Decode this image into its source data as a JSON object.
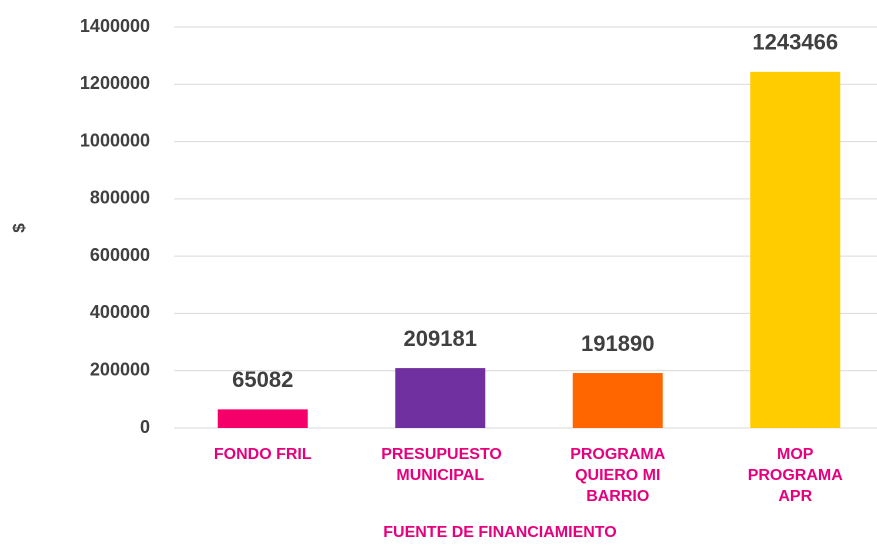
{
  "chart_data": {
    "type": "bar",
    "categories": [
      "FONDO FRIL",
      "PRESUPUESTO MUNICIPAL",
      "PROGRAMA QUIERO MI BARRIO",
      "MOP PROGRAMA APR"
    ],
    "values": [
      65082,
      209181,
      191890,
      1243466
    ],
    "colors": [
      "#f5006a",
      "#7030a0",
      "#ff6600",
      "#ffcc00"
    ],
    "ylabel": "$",
    "xlabel": "FUENTE DE FINANCIAMIENTO",
    "ylim": [
      0,
      1400000
    ],
    "yticks": [
      0,
      200000,
      400000,
      600000,
      800000,
      1000000,
      1200000,
      1400000
    ],
    "grid": true
  }
}
